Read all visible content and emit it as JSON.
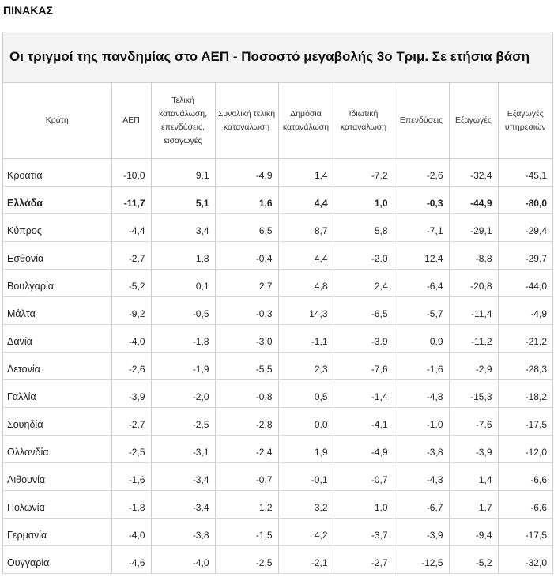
{
  "heading": "ΠΙΝΑΚΑΣ",
  "caption": "Οι τριγμοί της πανδημίας στο ΑΕΠ - Ποσοστό μεγαβολής 3ο Τριμ. Σε ετήσια βάση",
  "columns": [
    "Κράτη",
    "ΑΕΠ",
    "Τελική κατανάλωση, επενδύσεις, εισαγωγές",
    "Συνολική τελική κατανάλωση",
    "Δημόσια κατανάλωση",
    "Ιδιωτική κατανάλωση",
    "Επενδύσεις",
    "Εξαγωγές",
    "Εξαγωγές υπηρεσιών"
  ],
  "rows": [
    [
      "Κροατία",
      "-10,0",
      "9,1",
      "-4,9",
      "1,4",
      "-7,2",
      "-2,6",
      "-32,4",
      "-45,1"
    ],
    [
      "Ελλάδα",
      "-11,7",
      "5,1",
      "1,6",
      "4,4",
      "1,0",
      "-0,3",
      "-44,9",
      "-80,0"
    ],
    [
      "Κύπρος",
      "-4,4",
      "3,4",
      "6,5",
      "8,7",
      "5,8",
      "-7,1",
      "-29,1",
      "-29,4"
    ],
    [
      "Εσθονία",
      "-2,7",
      "1,8",
      "-0,4",
      "4,4",
      "-2,0",
      "12,4",
      "-8,8",
      "-29,7"
    ],
    [
      "Βουλγαρία",
      "-5,2",
      "0,1",
      "2,7",
      "4,8",
      "2,4",
      "-6,4",
      "-20,8",
      "-44,0"
    ],
    [
      "Μάλτα",
      "-9,2",
      "-0,5",
      "-0,3",
      "14,3",
      "-6,5",
      "-5,7",
      "-11,4",
      "-4,9"
    ],
    [
      "Δανία",
      "-4,0",
      "-1,8",
      "-3,0",
      "-1,1",
      "-3,9",
      "0,9",
      "-11,2",
      "-21,2"
    ],
    [
      "Λετονία",
      "-2,6",
      "-1,9",
      "-5,5",
      "2,3",
      "-7,6",
      "-1,6",
      "-2,9",
      "-28,3"
    ],
    [
      "Γαλλία",
      "-3,9",
      "-2,0",
      "-0,8",
      "0,5",
      "-1,4",
      "-4,8",
      "-15,3",
      "-18,2"
    ],
    [
      "Σουηδία",
      "-2,7",
      "-2,5",
      "-2,8",
      "0,0",
      "-4,1",
      "-1,0",
      "-7,6",
      "-17,5"
    ],
    [
      "Ολλανδία",
      "-2,5",
      "-3,1",
      "-2,4",
      "1,9",
      "-4,9",
      "-3,8",
      "-3,9",
      "-12,0"
    ],
    [
      "Λιθουνία",
      "-1,6",
      "-3,4",
      "-0,7",
      "-0,1",
      "-0,7",
      "-4,3",
      "1,4",
      "-6,6"
    ],
    [
      "Πολωνία",
      "-1,8",
      "-3,4",
      "1,2",
      "3,2",
      "1,0",
      "-6,7",
      "1,7",
      "-6,6"
    ],
    [
      "Γερμανία",
      "-4,0",
      "-3,8",
      "-1,5",
      "4,2",
      "-3,7",
      "-3,9",
      "-9,4",
      "-17,5"
    ],
    [
      "Ουγγαρία",
      "-4,6",
      "-4,0",
      "-2,5",
      "-2,1",
      "-2,7",
      "-12,5",
      "-5,2",
      "-32,0"
    ]
  ],
  "highlight_row": "Ελλάδα"
}
